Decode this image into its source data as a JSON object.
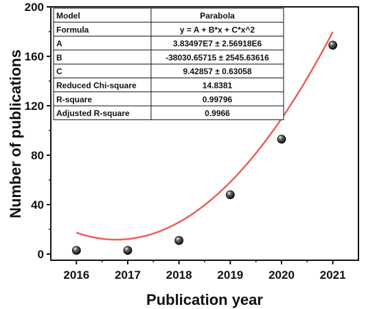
{
  "chart_data": {
    "type": "scatter",
    "xlabel": "Publication year",
    "ylabel": "Number of publications",
    "xlim": [
      2015.5,
      2021.5
    ],
    "ylim": [
      -5,
      200
    ],
    "x_ticks": [
      2016,
      2017,
      2018,
      2019,
      2020,
      2021
    ],
    "y_ticks": [
      0,
      40,
      80,
      120,
      160,
      200
    ],
    "x_tick_labels": [
      "2016",
      "2017",
      "2018",
      "2019",
      "2020",
      "2021"
    ],
    "y_tick_labels": [
      "0",
      "40",
      "80",
      "120",
      "160",
      "200"
    ],
    "grid": false,
    "points": {
      "x": [
        2016,
        2017,
        2018,
        2019,
        2020,
        2021
      ],
      "y": [
        3,
        3,
        11,
        48,
        93,
        169
      ],
      "color": "#111111"
    },
    "fit": {
      "type": "parabola",
      "coefficients": [
        38349700,
        -38030.65715,
        9.42857
      ],
      "color": "#e8605a"
    },
    "fit_table": {
      "rows": [
        {
          "label": "Model",
          "value": "Parabola"
        },
        {
          "label": "Formula",
          "value": "y = A + B*x + C*x^2"
        },
        {
          "label": "A",
          "value": "3.83497E7 ± 2.56918E6"
        },
        {
          "label": "B",
          "value": "-38030.65715 ± 2545.63616"
        },
        {
          "label": "C",
          "value": "9.42857 ± 0.63058"
        },
        {
          "label": "Reduced Chi-square",
          "value": "14.8381"
        },
        {
          "label": "R-square",
          "value": "0.99796"
        },
        {
          "label": "Adjusted R-square",
          "value": "0.9966"
        }
      ]
    }
  }
}
